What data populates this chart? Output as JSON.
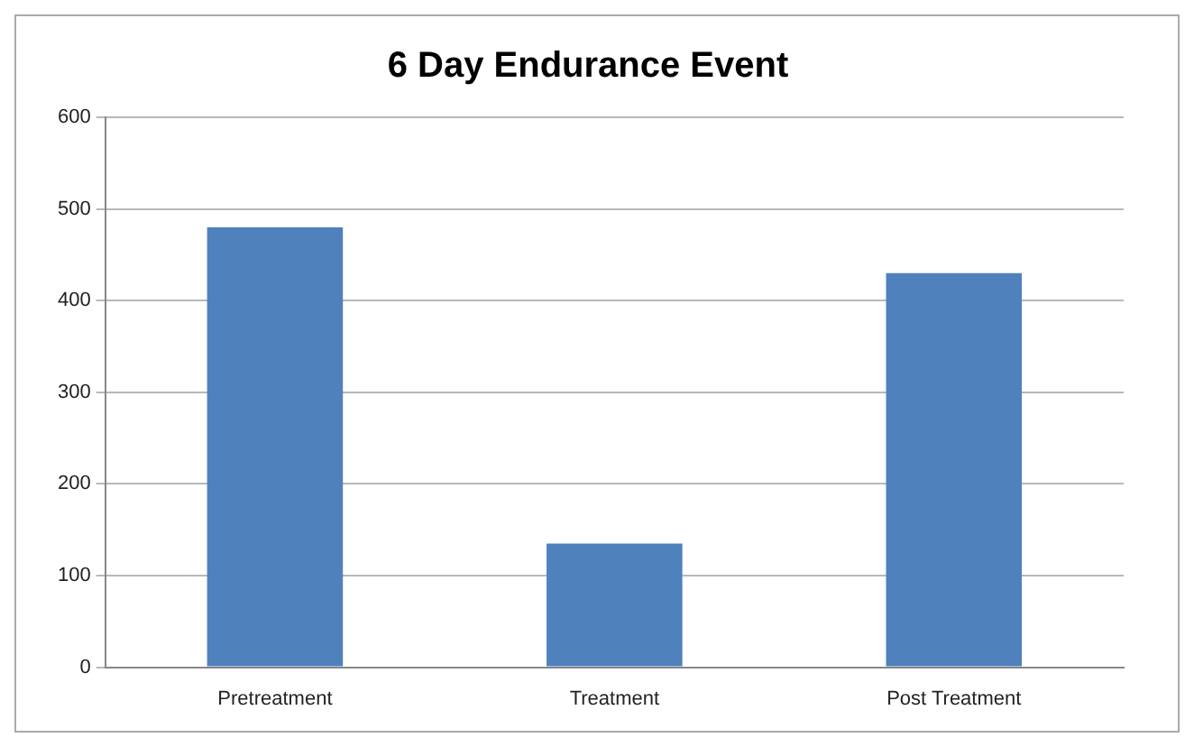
{
  "chart_data": {
    "type": "bar",
    "title": "6 Day Endurance Event",
    "categories": [
      "Pretreatment",
      "Treatment",
      "Post Treatment"
    ],
    "values": [
      480,
      135,
      430
    ],
    "color": "#4f81bd",
    "ylim": [
      0,
      600
    ],
    "yticks": [
      0,
      100,
      200,
      300,
      400,
      500,
      600
    ],
    "grid": "y"
  }
}
